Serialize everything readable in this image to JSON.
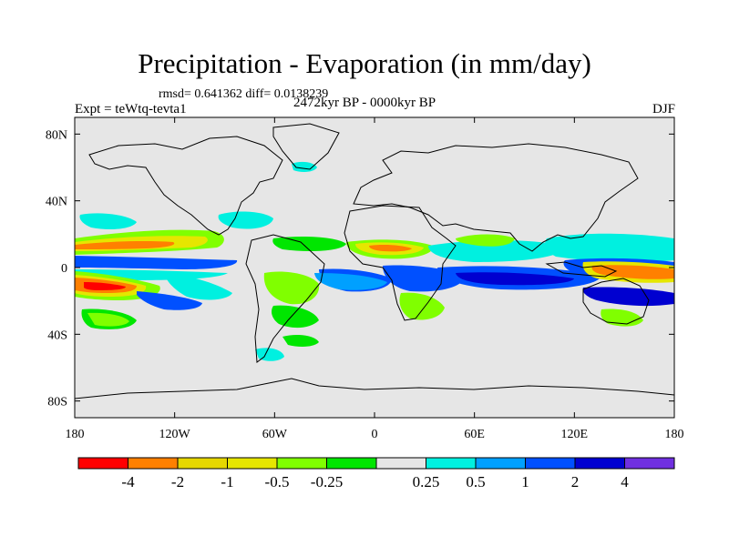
{
  "title": "Precipitation - Evaporation (in mm/day)",
  "stats": "rmsd= 0.641362 diff= 0.0138239",
  "experiment": "Expt = teWtq-tevta1",
  "period": "2472kyr BP - 0000kyr BP",
  "season": "DJF",
  "map": {
    "projection": "cylindrical-equidistant",
    "lon_range": [
      -180,
      180
    ],
    "lat_range": [
      -90,
      90
    ],
    "lon_ticks": [
      {
        "value": -180,
        "label": "180"
      },
      {
        "value": -120,
        "label": "120W"
      },
      {
        "value": -60,
        "label": "60W"
      },
      {
        "value": 0,
        "label": "0"
      },
      {
        "value": 60,
        "label": "60E"
      },
      {
        "value": 120,
        "label": "120E"
      },
      {
        "value": 180,
        "label": "180"
      }
    ],
    "lat_ticks": [
      {
        "value": 80,
        "label": "80N"
      },
      {
        "value": 40,
        "label": "40N"
      },
      {
        "value": 0,
        "label": "0"
      },
      {
        "value": -40,
        "label": "40S"
      },
      {
        "value": -80,
        "label": "80S"
      }
    ]
  },
  "colorbar": {
    "colors": [
      "#ff0000",
      "#ff8000",
      "#e6d700",
      "#e6e600",
      "#80ff00",
      "#00e600",
      "#e6e6e6",
      "#00f0e0",
      "#00a0ff",
      "#0050ff",
      "#0000d0",
      "#7030e0"
    ],
    "labels": [
      "-4",
      "-2",
      "-1",
      "-0.5",
      "-0.25",
      "0.25",
      "0.5",
      "1",
      "2",
      "4"
    ],
    "label_positions": [
      1,
      2,
      3,
      4,
      5,
      7,
      8,
      9,
      10,
      11
    ]
  }
}
